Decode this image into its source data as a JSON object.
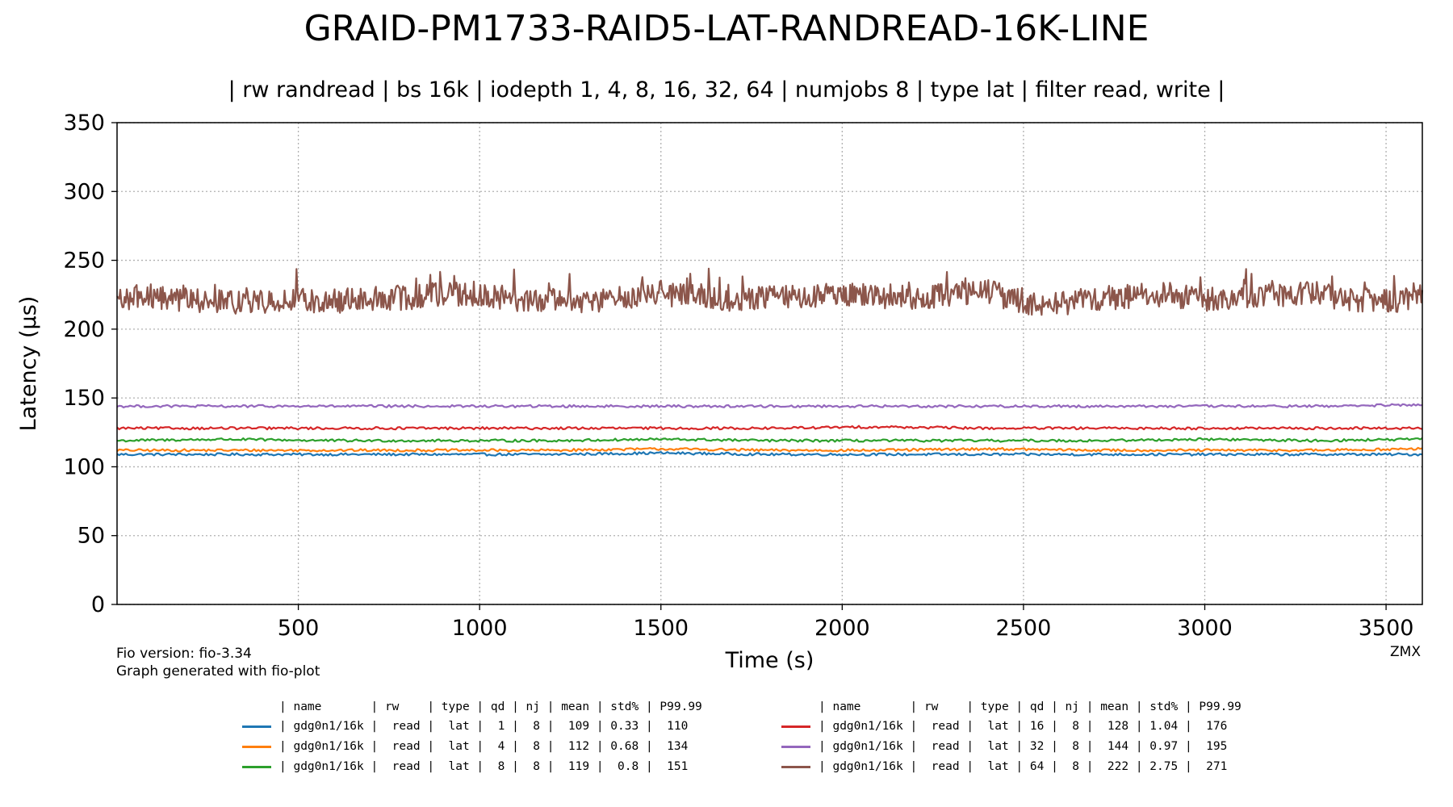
{
  "chart_data": {
    "type": "line",
    "title": "GRAID-PM1733-RAID5-LAT-RANDREAD-16K-LINE",
    "subtitle": "| rw randread | bs 16k | iodepth 1, 4, 8, 16, 32, 64 | numjobs 8 | type lat | filter read, write |",
    "xlabel": "Time (s)",
    "ylabel": "Latency (µs)",
    "xlim": [
      0,
      3600
    ],
    "ylim": [
      0,
      350
    ],
    "xticks": [
      500,
      1000,
      1500,
      2000,
      2500,
      3000,
      3500
    ],
    "yticks": [
      0,
      50,
      100,
      150,
      200,
      250,
      300,
      350
    ],
    "grid": true,
    "series": [
      {
        "name": "gdg0n1/16k",
        "qd": 1,
        "color": "#1f77b4",
        "x": [
          0,
          300,
          600,
          900,
          1200,
          1500,
          1800,
          2100,
          2400,
          2700,
          3000,
          3300,
          3600
        ],
        "values": [
          109,
          109,
          109,
          109,
          109,
          110,
          109,
          109,
          109,
          109,
          109,
          109,
          109
        ]
      },
      {
        "name": "gdg0n1/16k",
        "qd": 4,
        "color": "#ff7f0e",
        "x": [
          0,
          300,
          600,
          900,
          1200,
          1500,
          1800,
          2100,
          2400,
          2700,
          3000,
          3300,
          3600
        ],
        "values": [
          112,
          112,
          112,
          112,
          112,
          113,
          112,
          112,
          113,
          112,
          112,
          112,
          113
        ]
      },
      {
        "name": "gdg0n1/16k",
        "qd": 8,
        "color": "#2ca02c",
        "x": [
          0,
          300,
          600,
          900,
          1200,
          1500,
          1800,
          2100,
          2400,
          2700,
          3000,
          3300,
          3600
        ],
        "values": [
          119,
          120,
          119,
          119,
          119,
          120,
          119,
          119,
          119,
          119,
          120,
          119,
          120
        ]
      },
      {
        "name": "gdg0n1/16k",
        "qd": 16,
        "color": "#d62728",
        "x": [
          0,
          300,
          600,
          900,
          1200,
          1500,
          1800,
          2100,
          2400,
          2700,
          3000,
          3300,
          3600
        ],
        "values": [
          128,
          128,
          128,
          128,
          128,
          128,
          128,
          129,
          128,
          128,
          128,
          128,
          128
        ]
      },
      {
        "name": "gdg0n1/16k",
        "qd": 32,
        "color": "#9467bd",
        "x": [
          0,
          300,
          600,
          900,
          1200,
          1500,
          1800,
          2100,
          2400,
          2700,
          3000,
          3300,
          3600
        ],
        "values": [
          144,
          144,
          144,
          144,
          144,
          144,
          144,
          144,
          144,
          144,
          144,
          144,
          145
        ]
      },
      {
        "name": "gdg0n1/16k",
        "qd": 64,
        "color": "#8c564b",
        "x": [
          0,
          100,
          200,
          300,
          400,
          500,
          600,
          700,
          800,
          900,
          1000,
          1100,
          1200,
          1300,
          1400,
          1500,
          1600,
          1700,
          1800,
          1900,
          2000,
          2100,
          2200,
          2300,
          2400,
          2500,
          2600,
          2700,
          2800,
          2900,
          3000,
          3100,
          3200,
          3300,
          3400,
          3500,
          3600
        ],
        "values": [
          222,
          224,
          221,
          220,
          219,
          221,
          220,
          222,
          223,
          226,
          225,
          222,
          221,
          219,
          223,
          226,
          224,
          222,
          224,
          222,
          226,
          224,
          223,
          225,
          228,
          219,
          219,
          222,
          224,
          225,
          222,
          224,
          225,
          226,
          222,
          220,
          222
        ]
      }
    ],
    "footnotes": [
      "Fio version: fio-3.34",
      "Graph generated with fio-plot",
      "ZMX"
    ]
  },
  "legend": {
    "header": "| name       | rw    | type | qd | nj | mean | std% | P99.99",
    "rows": [
      "| gdg0n1/16k |  read |  lat |  1 |  8 |  109 | 0.33 |  110",
      "| gdg0n1/16k |  read |  lat |  4 |  8 |  112 | 0.68 |  134",
      "| gdg0n1/16k |  read |  lat |  8 |  8 |  119 |  0.8 |  151",
      "| gdg0n1/16k |  read |  lat | 16 |  8 |  128 | 1.04 |  176",
      "| gdg0n1/16k |  read |  lat | 32 |  8 |  144 | 0.97 |  195",
      "| gdg0n1/16k |  read |  lat | 64 |  8 |  222 | 2.75 |  271"
    ]
  }
}
